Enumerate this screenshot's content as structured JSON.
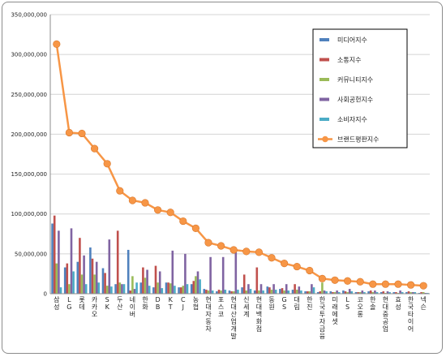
{
  "chart_data": {
    "type": "bar+line",
    "title": "",
    "xlabel": "",
    "ylabel": "",
    "ylim": [
      0,
      350000000
    ],
    "yticks": [
      0,
      50000000,
      100000000,
      150000000,
      200000000,
      250000000,
      300000000,
      350000000
    ],
    "ytick_labels": [
      "0",
      "50,000,000",
      "100,000,000",
      "150,000,000",
      "200,000,000",
      "250,000,000",
      "300,000,000",
      "350,000,000"
    ],
    "grid": true,
    "legend_position": "top-right",
    "categories": [
      "삼성",
      "LG",
      "롯데",
      "카카오",
      "SK",
      "두산",
      "네이버",
      "한화",
      "DB",
      "KT",
      "CJ",
      "농협",
      "현대자동차",
      "포스코",
      "현대산업개발",
      "신세계",
      "현대백화점",
      "동원",
      "GS",
      "대림",
      "한진",
      "한국투자금융",
      "미래에셋",
      "LS",
      "코오롱",
      "한솔",
      "현대중공업",
      "효성",
      "한국타이어",
      "넥슨"
    ],
    "series": [
      {
        "name": "미디어지수",
        "type": "bar",
        "color": "#4f81bd",
        "values": [
          88000000,
          33000000,
          40000000,
          58000000,
          32000000,
          12000000,
          55000000,
          14000000,
          8000000,
          14000000,
          8000000,
          12000000,
          6000000,
          3000000,
          4000000,
          8000000,
          4000000,
          9000000,
          6000000,
          5000000,
          3000000,
          2000000,
          3000000,
          4000000,
          2000000,
          3000000,
          2000000,
          2000000,
          2000000,
          1000000
        ]
      },
      {
        "name": "소통지수",
        "type": "bar",
        "color": "#c0504d",
        "values": [
          98000000,
          38000000,
          70000000,
          44000000,
          26000000,
          79000000,
          4000000,
          33000000,
          35000000,
          14000000,
          8000000,
          16000000,
          5000000,
          5000000,
          3000000,
          24000000,
          33000000,
          8000000,
          7000000,
          12000000,
          3000000,
          3000000,
          2000000,
          3000000,
          2000000,
          4000000,
          3000000,
          2000000,
          3000000,
          2000000
        ]
      },
      {
        "name": "커뮤니티지수",
        "type": "bar",
        "color": "#9bbb59",
        "values": [
          38000000,
          12000000,
          24000000,
          24000000,
          10000000,
          14000000,
          22000000,
          20000000,
          14000000,
          13000000,
          10000000,
          22000000,
          4000000,
          4000000,
          3000000,
          4000000,
          4000000,
          5000000,
          4000000,
          5000000,
          3000000,
          14000000,
          2000000,
          2000000,
          2000000,
          2000000,
          1000000,
          1000000,
          2000000,
          2000000
        ]
      },
      {
        "name": "사회공헌지수",
        "type": "bar",
        "color": "#8064a2",
        "values": [
          79000000,
          82000000,
          48000000,
          40000000,
          68000000,
          12000000,
          6000000,
          30000000,
          28000000,
          54000000,
          50000000,
          28000000,
          46000000,
          46000000,
          52000000,
          12000000,
          12000000,
          12000000,
          12000000,
          9000000,
          12000000,
          4000000,
          4000000,
          6000000,
          4000000,
          4000000,
          3000000,
          4000000,
          2000000,
          1000000
        ]
      },
      {
        "name": "소비자지수",
        "type": "bar",
        "color": "#4bacc6",
        "values": [
          8000000,
          28000000,
          12000000,
          14000000,
          9000000,
          12000000,
          14000000,
          10000000,
          7000000,
          10000000,
          12000000,
          18000000,
          4000000,
          5000000,
          5000000,
          6000000,
          4000000,
          5000000,
          4000000,
          4000000,
          8000000,
          3000000,
          2000000,
          3000000,
          2000000,
          2000000,
          2000000,
          2000000,
          2000000,
          1000000
        ]
      },
      {
        "name": "브랜드평판지수",
        "type": "line",
        "color": "#f79646",
        "values": [
          313000000,
          202000000,
          201000000,
          182000000,
          163000000,
          129000000,
          117000000,
          114000000,
          105000000,
          102000000,
          91000000,
          82000000,
          64000000,
          60000000,
          55000000,
          53000000,
          52000000,
          45000000,
          38000000,
          34000000,
          29000000,
          19000000,
          17000000,
          16000000,
          15000000,
          12000000,
          12000000,
          12000000,
          11000000,
          10000000
        ]
      }
    ]
  }
}
